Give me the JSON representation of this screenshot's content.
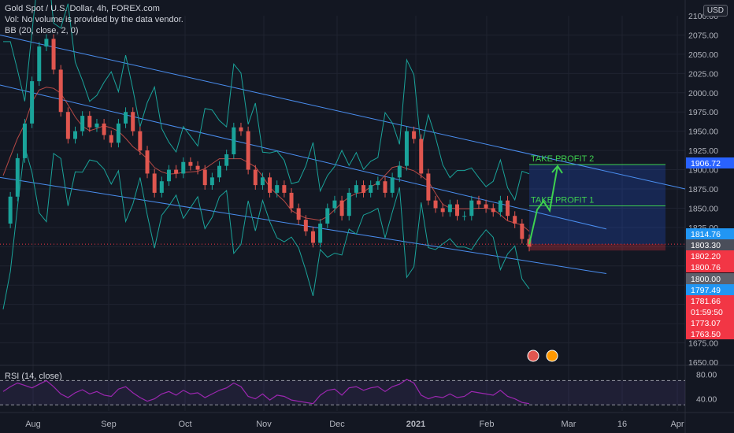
{
  "legend": {
    "title": "Gold Spot / U.S. Dollar, 4h, FOREX.com",
    "volume": "Vol: No volume is provided by the data vendor.",
    "bb": "BB (20, close, 2, 0)"
  },
  "currency": "USD",
  "rsi_label": "RSI (14, close)",
  "colors": {
    "background": "#131722",
    "grid": "#1f2330",
    "channel": "#4a8ef0",
    "bollinger": "#1aa39a",
    "candle_up": "#1aa39a",
    "candle_down": "#e0564f",
    "target": "#3ed14f",
    "rsi": "#9c27b0"
  },
  "chart_data": {
    "type": "line",
    "ylim": [
      1650,
      2100
    ],
    "y_ticks": [
      1650,
      1675,
      1700,
      1725,
      1750,
      1775,
      1800,
      1825,
      1850,
      1875,
      1900,
      1925,
      1950,
      1975,
      2000,
      2025,
      2050,
      2075,
      2100
    ],
    "y_tick_labels": [
      "1650.00",
      "1675.00",
      "1700.00",
      "1725.00",
      "1750.00",
      "1775.00",
      "1800.00",
      "1825.00",
      "1850.00",
      "1875.00",
      "1900.00",
      "1925.00",
      "1950.00",
      "1975.00",
      "2000.00",
      "2025.00",
      "2050.00",
      "2075.00",
      "2100.00"
    ],
    "x_labels": [
      "Aug",
      "Sep",
      "Oct",
      "Nov",
      "Dec",
      "2021",
      "Feb",
      "Mar",
      "16",
      "Apr"
    ],
    "price_series": [
      1830,
      1865,
      1915,
      1960,
      2015,
      2060,
      2070,
      2030,
      1975,
      1940,
      1950,
      1970,
      1955,
      1960,
      1945,
      1935,
      1960,
      1975,
      1950,
      1925,
      1895,
      1870,
      1885,
      1900,
      1895,
      1910,
      1905,
      1900,
      1880,
      1890,
      1905,
      1920,
      1955,
      1950,
      1900,
      1880,
      1890,
      1870,
      1880,
      1870,
      1850,
      1835,
      1820,
      1805,
      1830,
      1850,
      1860,
      1840,
      1870,
      1880,
      1870,
      1880,
      1885,
      1870,
      1890,
      1905,
      1950,
      1940,
      1895,
      1860,
      1850,
      1845,
      1855,
      1840,
      1840,
      1860,
      1855,
      1850,
      1845,
      1860,
      1840,
      1830,
      1810,
      1800
    ],
    "channel_lines": [
      {
        "name": "upper",
        "points": [
          [
            0,
            2075
          ],
          [
            1,
            1875
          ]
        ]
      },
      {
        "name": "middle",
        "points": [
          [
            0,
            2010
          ],
          [
            0.885,
            1823
          ]
        ]
      },
      {
        "name": "lower",
        "points": [
          [
            0,
            1890
          ],
          [
            0.885,
            1765
          ]
        ]
      }
    ],
    "price_tags": [
      {
        "value": "1906.72",
        "color": "#2962ff"
      },
      {
        "value": "1814.76",
        "color": "#2196f3"
      },
      {
        "value": "1803.30",
        "color": "#4a4e5a"
      },
      {
        "value": "1802.20",
        "color": "#f23645"
      },
      {
        "value": "1800.76",
        "color": "#f23645"
      },
      {
        "value": "1800.00",
        "color": "#5d606b"
      },
      {
        "value": "1797.49",
        "color": "#2196f3"
      },
      {
        "value": "1781.66",
        "color": "#f23645"
      },
      {
        "value": "01:59:50",
        "color": "#f23645"
      },
      {
        "value": "1773.07",
        "color": "#f23645"
      },
      {
        "value": "1763.50",
        "color": "#f23645"
      }
    ],
    "annotations": [
      {
        "text": "TAKE PROFIT 2",
        "price": 1906.72
      },
      {
        "text": "TAKE PROFIT 1",
        "price": 1853
      }
    ],
    "entry_price": 1803.3,
    "rsi": {
      "ylim": [
        20,
        90
      ],
      "ticks": [
        "80.00",
        "40.00"
      ],
      "upper_band": 70,
      "lower_band": 30,
      "values": [
        52,
        60,
        66,
        62,
        58,
        64,
        70,
        60,
        48,
        42,
        50,
        55,
        48,
        52,
        46,
        44,
        56,
        60,
        50,
        42,
        36,
        40,
        48,
        52,
        46,
        54,
        48,
        50,
        42,
        48,
        54,
        58,
        66,
        60,
        44,
        40,
        48,
        38,
        46,
        44,
        38,
        36,
        34,
        32,
        46,
        54,
        56,
        46,
        58,
        60,
        54,
        58,
        60,
        52,
        60,
        64,
        72,
        66,
        46,
        40,
        44,
        42,
        48,
        42,
        44,
        52,
        50,
        48,
        46,
        54,
        44,
        40,
        34,
        32
      ]
    },
    "grid": true
  }
}
